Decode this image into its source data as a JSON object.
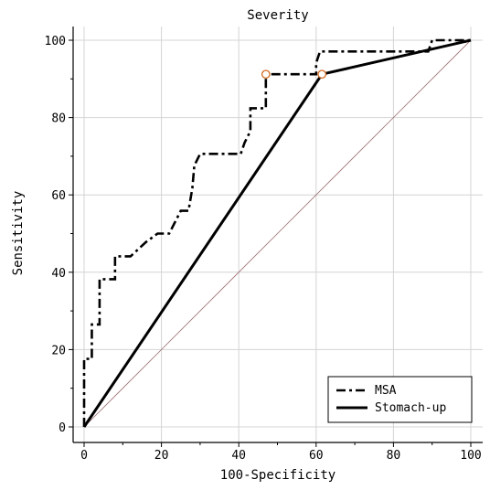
{
  "chart_data": {
    "type": "line",
    "title": "Severity",
    "xlabel": "100-Specificity",
    "ylabel": "Sensitivity",
    "xlim": [
      0,
      100
    ],
    "ylim": [
      0,
      100
    ],
    "xticks": [
      0,
      20,
      40,
      60,
      80,
      100
    ],
    "yticks": [
      0,
      20,
      40,
      60,
      80,
      100
    ],
    "grid": true,
    "legend_position": "bottom-right",
    "series": [
      {
        "name": "MSA",
        "style": "dash-dot",
        "color": "#000000",
        "points": [
          [
            0,
            0
          ],
          [
            0,
            17.6
          ],
          [
            2,
            17.6
          ],
          [
            2,
            26.5
          ],
          [
            4,
            26.5
          ],
          [
            4,
            38.2
          ],
          [
            8,
            38.2
          ],
          [
            8,
            44.1
          ],
          [
            12,
            44.1
          ],
          [
            16,
            47.8
          ],
          [
            19,
            50
          ],
          [
            22,
            50
          ],
          [
            25,
            55.9
          ],
          [
            27,
            55.9
          ],
          [
            28,
            61.8
          ],
          [
            28.5,
            67.6
          ],
          [
            30,
            70.6
          ],
          [
            40.5,
            70.6
          ],
          [
            41.5,
            73.5
          ],
          [
            43,
            76.5
          ],
          [
            43,
            82.4
          ],
          [
            47,
            82.4
          ],
          [
            47,
            91.2
          ],
          [
            60,
            91.2
          ],
          [
            60,
            94.1
          ],
          [
            61,
            97.1
          ],
          [
            89,
            97.1
          ],
          [
            90,
            100
          ],
          [
            100,
            100
          ]
        ],
        "marker": [
          47,
          91.2
        ]
      },
      {
        "name": "Stomach-up",
        "style": "solid",
        "color": "#000000",
        "points": [
          [
            0,
            0
          ],
          [
            61.5,
            91.2
          ],
          [
            100,
            100
          ]
        ],
        "marker": [
          61.5,
          91.2
        ]
      }
    ],
    "reference_line": {
      "points": [
        [
          0,
          0
        ],
        [
          100,
          100
        ]
      ],
      "color": "#a07070"
    },
    "marker_color": "#d2691e"
  }
}
